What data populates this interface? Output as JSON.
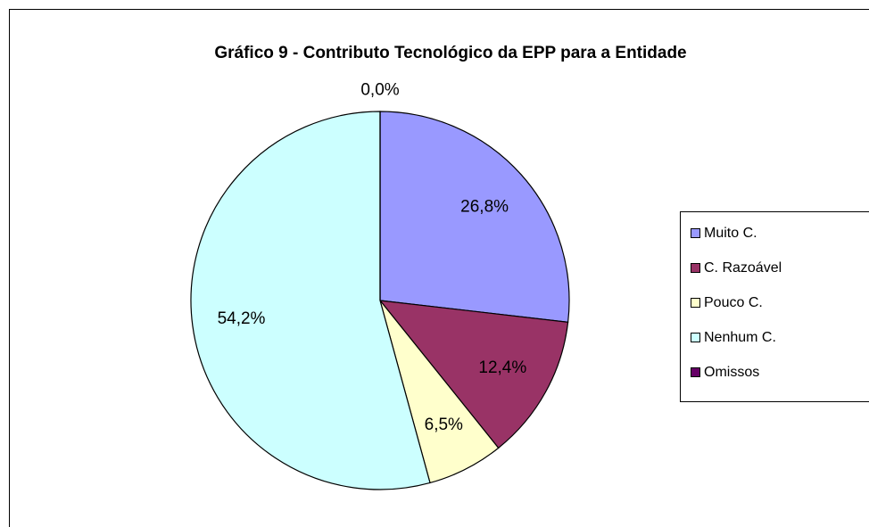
{
  "chart_data": {
    "type": "pie",
    "title": "Gráfico 9 - Contributo Tecnológico da EPP para a Entidade",
    "categories": [
      "Muito C.",
      "C. Razoável",
      "Pouco C.",
      "Nenhum C.",
      "Omissos"
    ],
    "values": [
      26.8,
      12.4,
      6.5,
      54.2,
      0.0
    ],
    "value_labels": [
      "26,8%",
      "12,4%",
      "6,5%",
      "54,2%",
      "0,0%"
    ],
    "colors": [
      "#9999ff",
      "#993366",
      "#ffffcc",
      "#ccffff",
      "#660066"
    ],
    "legend": "right"
  }
}
